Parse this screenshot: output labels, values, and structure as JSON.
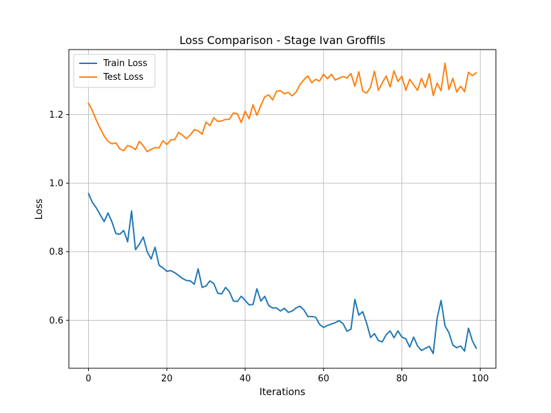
{
  "chart_data": {
    "type": "line",
    "title": "Loss Comparison - Stage Ivan Groffils",
    "xlabel": "Iterations",
    "ylabel": "Loss",
    "xlim": [
      -5,
      104
    ],
    "ylim": [
      0.46,
      1.39
    ],
    "xticks": [
      0,
      20,
      40,
      60,
      80,
      100
    ],
    "yticks": [
      0.6,
      0.8,
      1.0,
      1.2
    ],
    "xtick_labels": [
      "0",
      "20",
      "40",
      "60",
      "80",
      "100"
    ],
    "ytick_labels": [
      "0.6",
      "0.8",
      "1.0",
      "1.2"
    ],
    "grid": true,
    "legend_position": "upper left",
    "series": [
      {
        "name": "Train Loss",
        "color": "#1f77b4",
        "values": [
          0.97,
          0.944,
          0.928,
          0.908,
          0.888,
          0.913,
          0.887,
          0.853,
          0.851,
          0.862,
          0.829,
          0.919,
          0.806,
          0.822,
          0.843,
          0.8,
          0.779,
          0.813,
          0.761,
          0.753,
          0.743,
          0.745,
          0.739,
          0.731,
          0.722,
          0.716,
          0.715,
          0.705,
          0.75,
          0.696,
          0.7,
          0.715,
          0.707,
          0.679,
          0.677,
          0.696,
          0.683,
          0.656,
          0.655,
          0.67,
          0.658,
          0.645,
          0.646,
          0.692,
          0.656,
          0.67,
          0.643,
          0.636,
          0.636,
          0.627,
          0.635,
          0.623,
          0.627,
          0.636,
          0.641,
          0.63,
          0.611,
          0.611,
          0.609,
          0.588,
          0.579,
          0.585,
          0.589,
          0.593,
          0.599,
          0.59,
          0.568,
          0.574,
          0.661,
          0.615,
          0.625,
          0.592,
          0.55,
          0.561,
          0.541,
          0.537,
          0.558,
          0.569,
          0.549,
          0.569,
          0.551,
          0.546,
          0.522,
          0.551,
          0.525,
          0.512,
          0.518,
          0.524,
          0.503,
          0.606,
          0.658,
          0.584,
          0.564,
          0.528,
          0.52,
          0.525,
          0.51,
          0.577,
          0.54,
          0.518
        ]
      },
      {
        "name": "Test Loss",
        "color": "#ff7f0e",
        "values": [
          1.234,
          1.212,
          1.184,
          1.16,
          1.138,
          1.122,
          1.115,
          1.118,
          1.1,
          1.095,
          1.11,
          1.106,
          1.098,
          1.122,
          1.109,
          1.092,
          1.099,
          1.104,
          1.103,
          1.124,
          1.113,
          1.126,
          1.127,
          1.148,
          1.14,
          1.13,
          1.141,
          1.156,
          1.153,
          1.143,
          1.178,
          1.168,
          1.191,
          1.18,
          1.182,
          1.186,
          1.187,
          1.205,
          1.203,
          1.177,
          1.21,
          1.188,
          1.229,
          1.198,
          1.227,
          1.252,
          1.258,
          1.243,
          1.268,
          1.27,
          1.261,
          1.265,
          1.255,
          1.266,
          1.288,
          1.302,
          1.313,
          1.293,
          1.303,
          1.298,
          1.318,
          1.305,
          1.318,
          1.301,
          1.307,
          1.311,
          1.307,
          1.32,
          1.283,
          1.325,
          1.269,
          1.263,
          1.28,
          1.327,
          1.271,
          1.293,
          1.313,
          1.281,
          1.328,
          1.297,
          1.312,
          1.271,
          1.303,
          1.287,
          1.271,
          1.306,
          1.279,
          1.32,
          1.256,
          1.292,
          1.27,
          1.35,
          1.273,
          1.306,
          1.266,
          1.283,
          1.267,
          1.324,
          1.314,
          1.322
        ]
      }
    ]
  }
}
